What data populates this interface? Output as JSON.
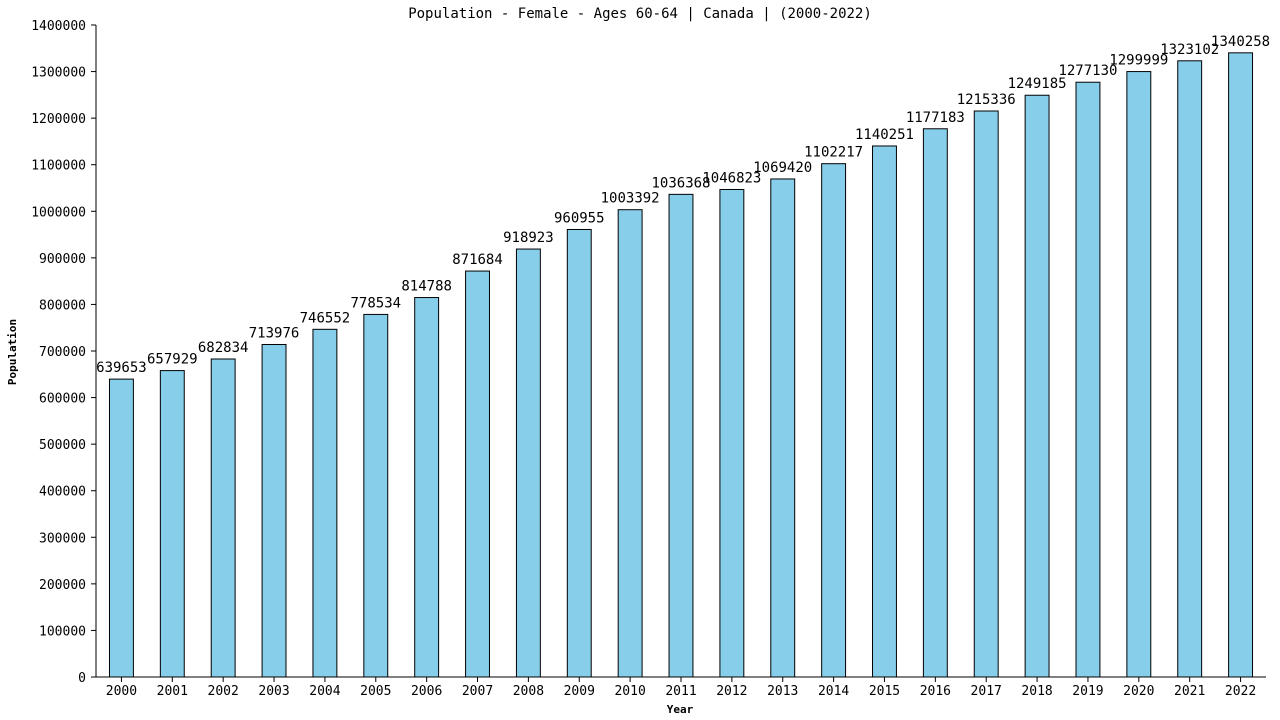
{
  "chart_data": {
    "type": "bar",
    "title": "Population - Female - Ages 60-64 | Canada |  (2000-2022)",
    "xlabel": "Year",
    "ylabel": "Population",
    "ylim": [
      0,
      1400000
    ],
    "y_ticks": [
      0,
      100000,
      200000,
      300000,
      400000,
      500000,
      600000,
      700000,
      800000,
      900000,
      1000000,
      1100000,
      1200000,
      1300000,
      1400000
    ],
    "categories": [
      "2000",
      "2001",
      "2002",
      "2003",
      "2004",
      "2005",
      "2006",
      "2007",
      "2008",
      "2009",
      "2010",
      "2011",
      "2012",
      "2013",
      "2014",
      "2015",
      "2016",
      "2017",
      "2018",
      "2019",
      "2020",
      "2021",
      "2022"
    ],
    "values": [
      639653,
      657929,
      682834,
      713976,
      746552,
      778534,
      814788,
      871684,
      918923,
      960955,
      1003392,
      1036368,
      1046823,
      1069420,
      1102217,
      1140251,
      1177183,
      1215336,
      1249185,
      1277130,
      1299999,
      1323102,
      1340258
    ],
    "grid": false,
    "legend": "none",
    "bar_color": "#87ceeb"
  }
}
